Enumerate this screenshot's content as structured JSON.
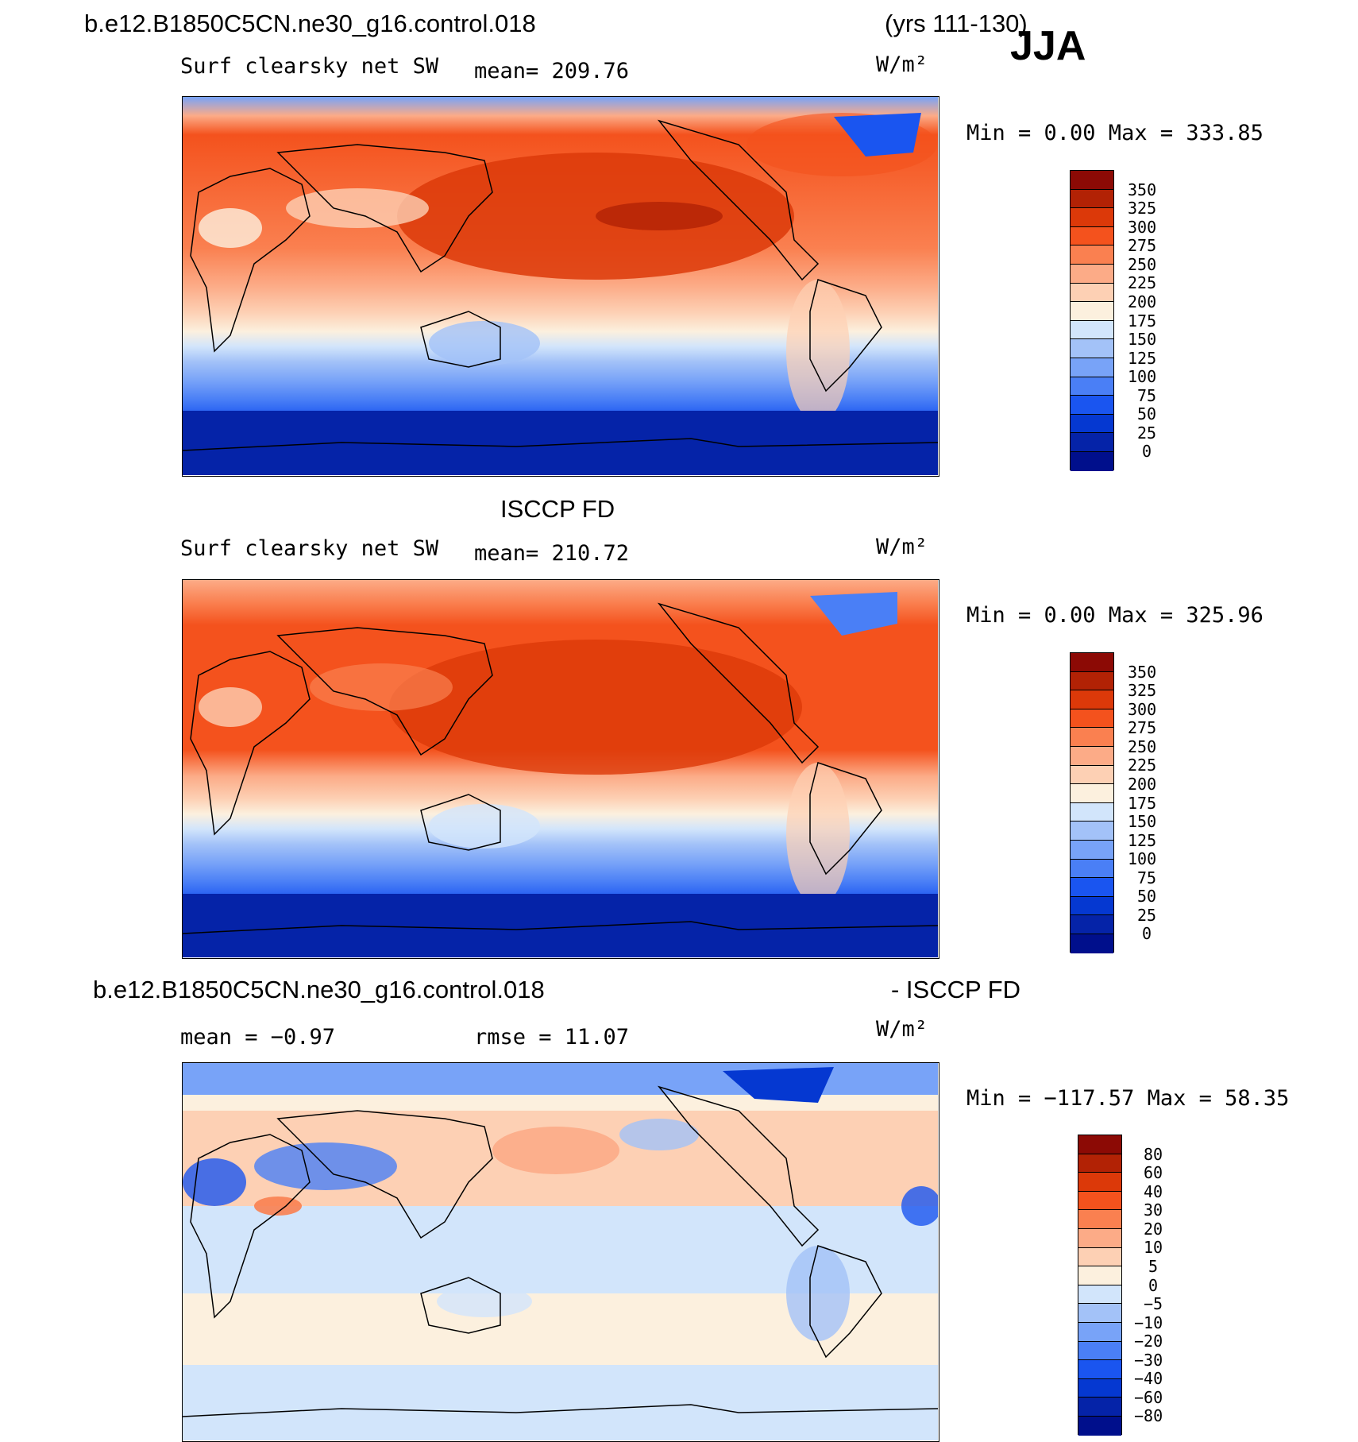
{
  "header": {
    "case_name": "b.e12.B1850C5CN.ne30_g16.control.018",
    "years": "(yrs 111-130)",
    "season": "JJA"
  },
  "panels": [
    {
      "dataset_title": "",
      "variable": "Surf clearsky net SW",
      "mean": "mean= 209.76",
      "units": "W/m²",
      "minmax": "Min =    0.00 Max = 333.85",
      "colorbar": {
        "colors": [
          "#000f8c",
          "#0523a8",
          "#0538d1",
          "#1a55f0",
          "#4a7ff6",
          "#78a3f8",
          "#a3c2f8",
          "#d2e5fb",
          "#fcf0de",
          "#fdd0b4",
          "#fcab87",
          "#fa8050",
          "#f4521d",
          "#dc3909",
          "#b22205",
          "#8c0a05"
        ],
        "ticks": [
          "0",
          "25",
          "50",
          "75",
          "100",
          "125",
          "150",
          "175",
          "200",
          "225",
          "250",
          "275",
          "300",
          "325",
          "350"
        ]
      }
    },
    {
      "dataset_title": "ISCCP FD",
      "variable": "Surf clearsky net SW",
      "mean": "mean= 210.72",
      "units": "W/m²",
      "minmax": "Min =    0.00 Max = 325.96",
      "colorbar": {
        "colors": [
          "#000f8c",
          "#0523a8",
          "#0538d1",
          "#1a55f0",
          "#4a7ff6",
          "#78a3f8",
          "#a3c2f8",
          "#d2e5fb",
          "#fcf0de",
          "#fdd0b4",
          "#fcab87",
          "#fa8050",
          "#f4521d",
          "#dc3909",
          "#b22205",
          "#8c0a05"
        ],
        "ticks": [
          "0",
          "25",
          "50",
          "75",
          "100",
          "125",
          "150",
          "175",
          "200",
          "225",
          "250",
          "275",
          "300",
          "325",
          "350"
        ]
      }
    },
    {
      "dataset_title": "",
      "diff_title_left": "b.e12.B1850C5CN.ne30_g16.control.018",
      "diff_title_right": "- ISCCP FD",
      "mean": "mean =   −0.97",
      "rmse": "rmse =   11.07",
      "units": "W/m²",
      "minmax": "Min = −117.57 Max =   58.35",
      "colorbar": {
        "colors": [
          "#000f8c",
          "#0523a8",
          "#0538d1",
          "#1a55f0",
          "#4a7ff6",
          "#78a3f8",
          "#a3c2f8",
          "#d2e5fb",
          "#fcf0de",
          "#fdd0b4",
          "#fcab87",
          "#fa8050",
          "#f4521d",
          "#dc3909",
          "#b22205",
          "#8c0a05"
        ],
        "ticks": [
          "−80",
          "−60",
          "−40",
          "−30",
          "−20",
          "−10",
          "−5",
          "0",
          "5",
          "10",
          "20",
          "30",
          "40",
          "60",
          "80"
        ]
      }
    }
  ]
}
